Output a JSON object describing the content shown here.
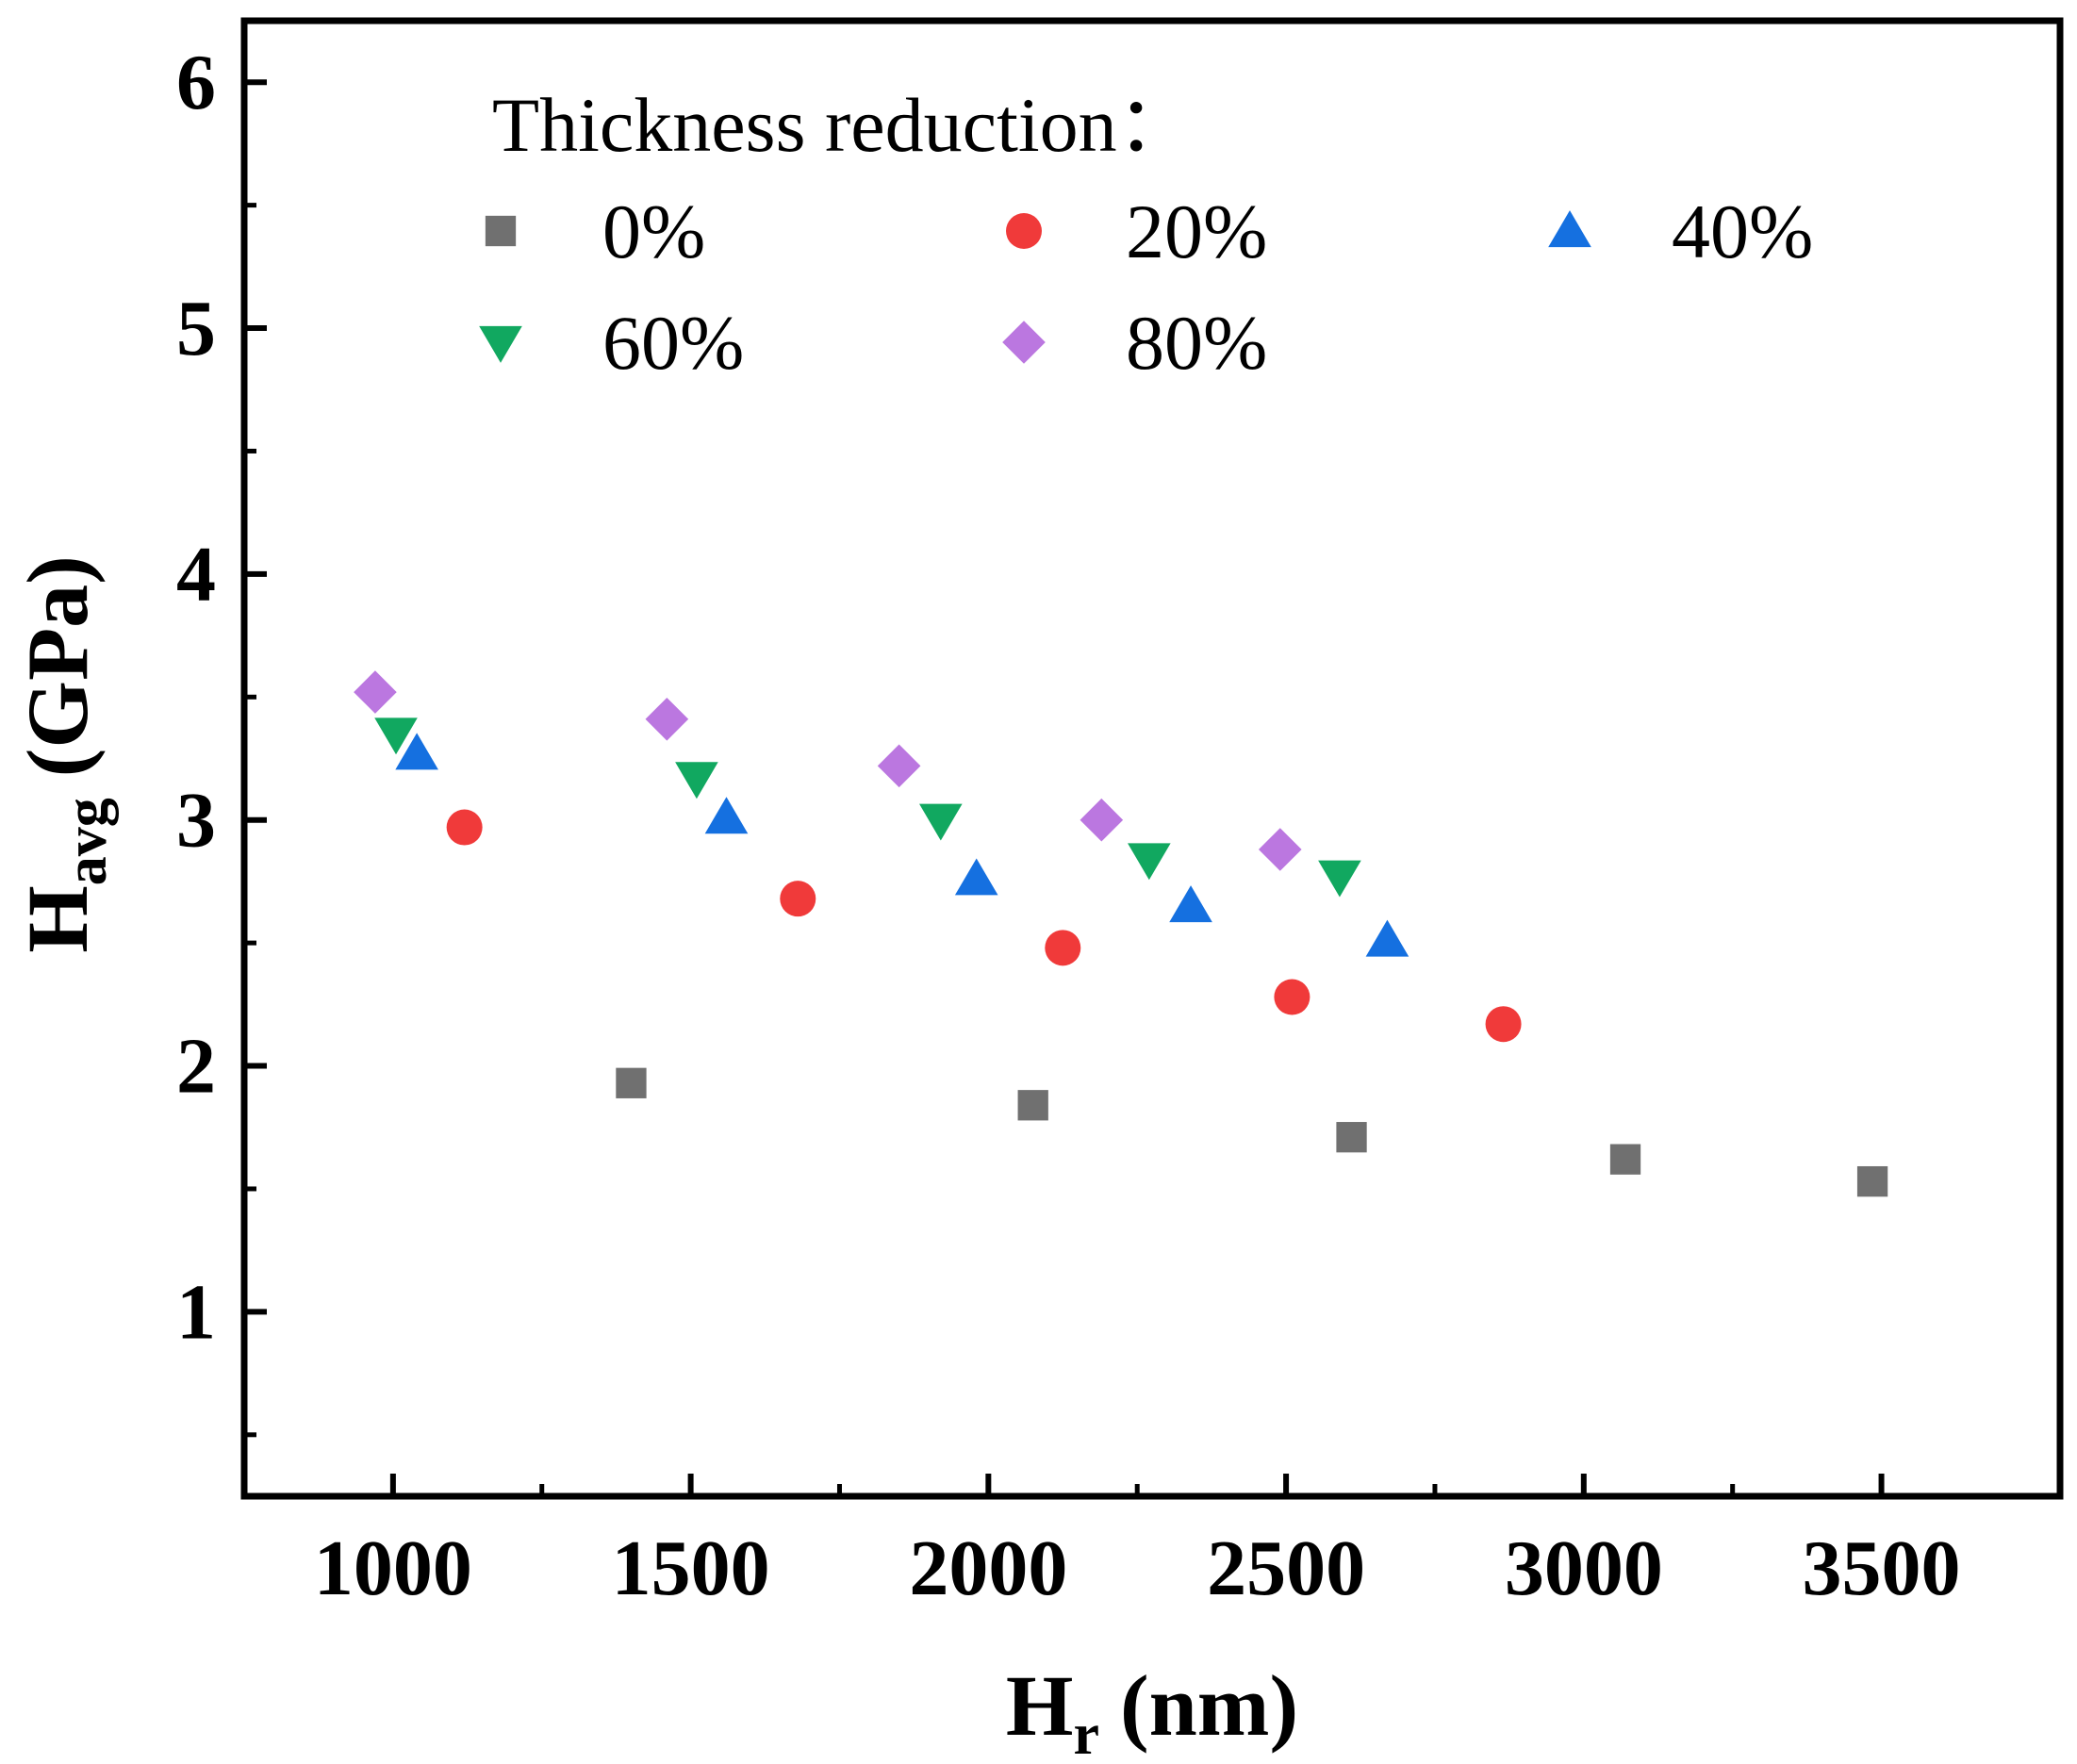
{
  "chart_data": {
    "type": "scatter",
    "title": "",
    "xlabel": {
      "main": "H",
      "sub": "r",
      "unit": "(nm)"
    },
    "ylabel": {
      "main": "H",
      "sub": "avg",
      "unit": "(GPa)"
    },
    "xlim": [
      750,
      3800
    ],
    "ylim": [
      0.25,
      6.25
    ],
    "x_ticks": [
      1000,
      1500,
      2000,
      2500,
      3000,
      3500
    ],
    "x_tick_labels": [
      "1000",
      "1500",
      "2000",
      "2500",
      "3000",
      "3500"
    ],
    "y_ticks": [
      1,
      2,
      3,
      4,
      5,
      6
    ],
    "y_tick_labels": [
      "1",
      "2",
      "3",
      "4",
      "5",
      "6"
    ],
    "grid": false,
    "legend": {
      "title": "Thickness reduction：",
      "placement": "top"
    },
    "series": [
      {
        "name": "0%",
        "marker": "square",
        "color": "#707070",
        "points": [
          [
            1400,
            1.93
          ],
          [
            2075,
            1.84
          ],
          [
            2610,
            1.71
          ],
          [
            3070,
            1.62
          ],
          [
            3485,
            1.53
          ]
        ]
      },
      {
        "name": "20%",
        "marker": "circle",
        "color": "#f03a3a",
        "points": [
          [
            1120,
            2.97
          ],
          [
            1680,
            2.68
          ],
          [
            2125,
            2.48
          ],
          [
            2510,
            2.28
          ],
          [
            2865,
            2.17
          ]
        ]
      },
      {
        "name": "40%",
        "marker": "triangle-up",
        "color": "#1570e0",
        "points": [
          [
            1040,
            3.27
          ],
          [
            1560,
            3.01
          ],
          [
            1980,
            2.76
          ],
          [
            2340,
            2.65
          ],
          [
            2670,
            2.51
          ]
        ]
      },
      {
        "name": "60%",
        "marker": "triangle-down",
        "color": "#11a860",
        "points": [
          [
            1005,
            3.35
          ],
          [
            1510,
            3.17
          ],
          [
            1920,
            3.0
          ],
          [
            2270,
            2.84
          ],
          [
            2590,
            2.77
          ]
        ]
      },
      {
        "name": "80%",
        "marker": "diamond",
        "color": "#bb77e0",
        "points": [
          [
            970,
            3.52
          ],
          [
            1460,
            3.41
          ],
          [
            1850,
            3.22
          ],
          [
            2190,
            3.0
          ],
          [
            2490,
            2.88
          ]
        ]
      }
    ]
  }
}
